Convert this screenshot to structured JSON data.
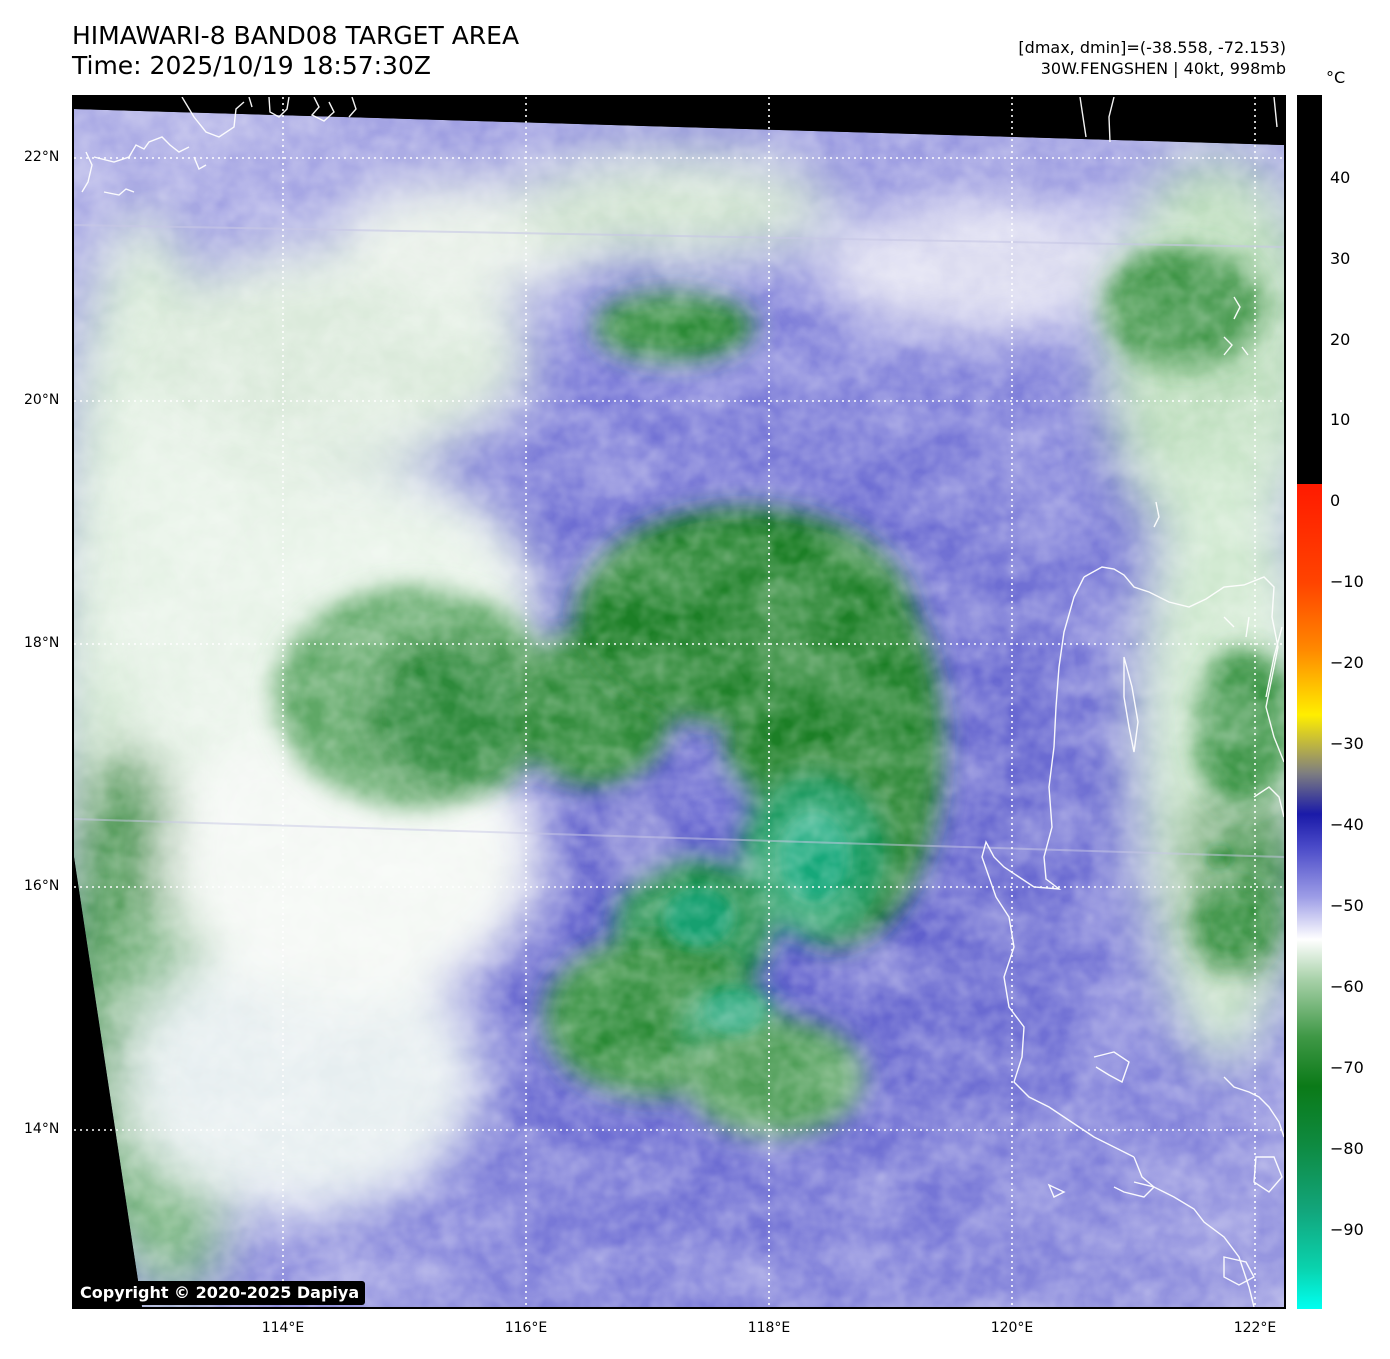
{
  "header": {
    "title_line1": "HIMAWARI-8 BAND08 TARGET AREA",
    "title_line2": "Time: 2025/10/19 18:57:30Z",
    "range_text": "[dmax, dmin]=(-38.558, -72.153)",
    "storm_text": "30W.FENGSHEN | 40kt, 998mb"
  },
  "map": {
    "lat_labels": [
      "22°N",
      "20°N",
      "18°N",
      "16°N",
      "14°N"
    ],
    "lon_labels": [
      "114°E",
      "116°E",
      "118°E",
      "120°E",
      "122°E"
    ],
    "copyright": "Copyright © 2020-2025 Dapiya"
  },
  "colorbar": {
    "unit": "°C",
    "ticks": [
      "40",
      "30",
      "20",
      "10",
      "0",
      "−10",
      "−20",
      "−30",
      "−40",
      "−50",
      "−60",
      "−70",
      "−80",
      "−90"
    ],
    "value_range": [
      -100,
      48
    ],
    "colors": {
      "above_zero": "#000000",
      "cyan": "#00f5e5",
      "teal": "#12a57b",
      "green": "#0b7a18",
      "white": "#ffffff",
      "lavender": "#9c9ce6",
      "blue": "#1a1aa8",
      "gray": "#7f7f7f",
      "yellow": "#ffee00",
      "orange": "#ff8800",
      "red": "#ff1a00"
    }
  }
}
